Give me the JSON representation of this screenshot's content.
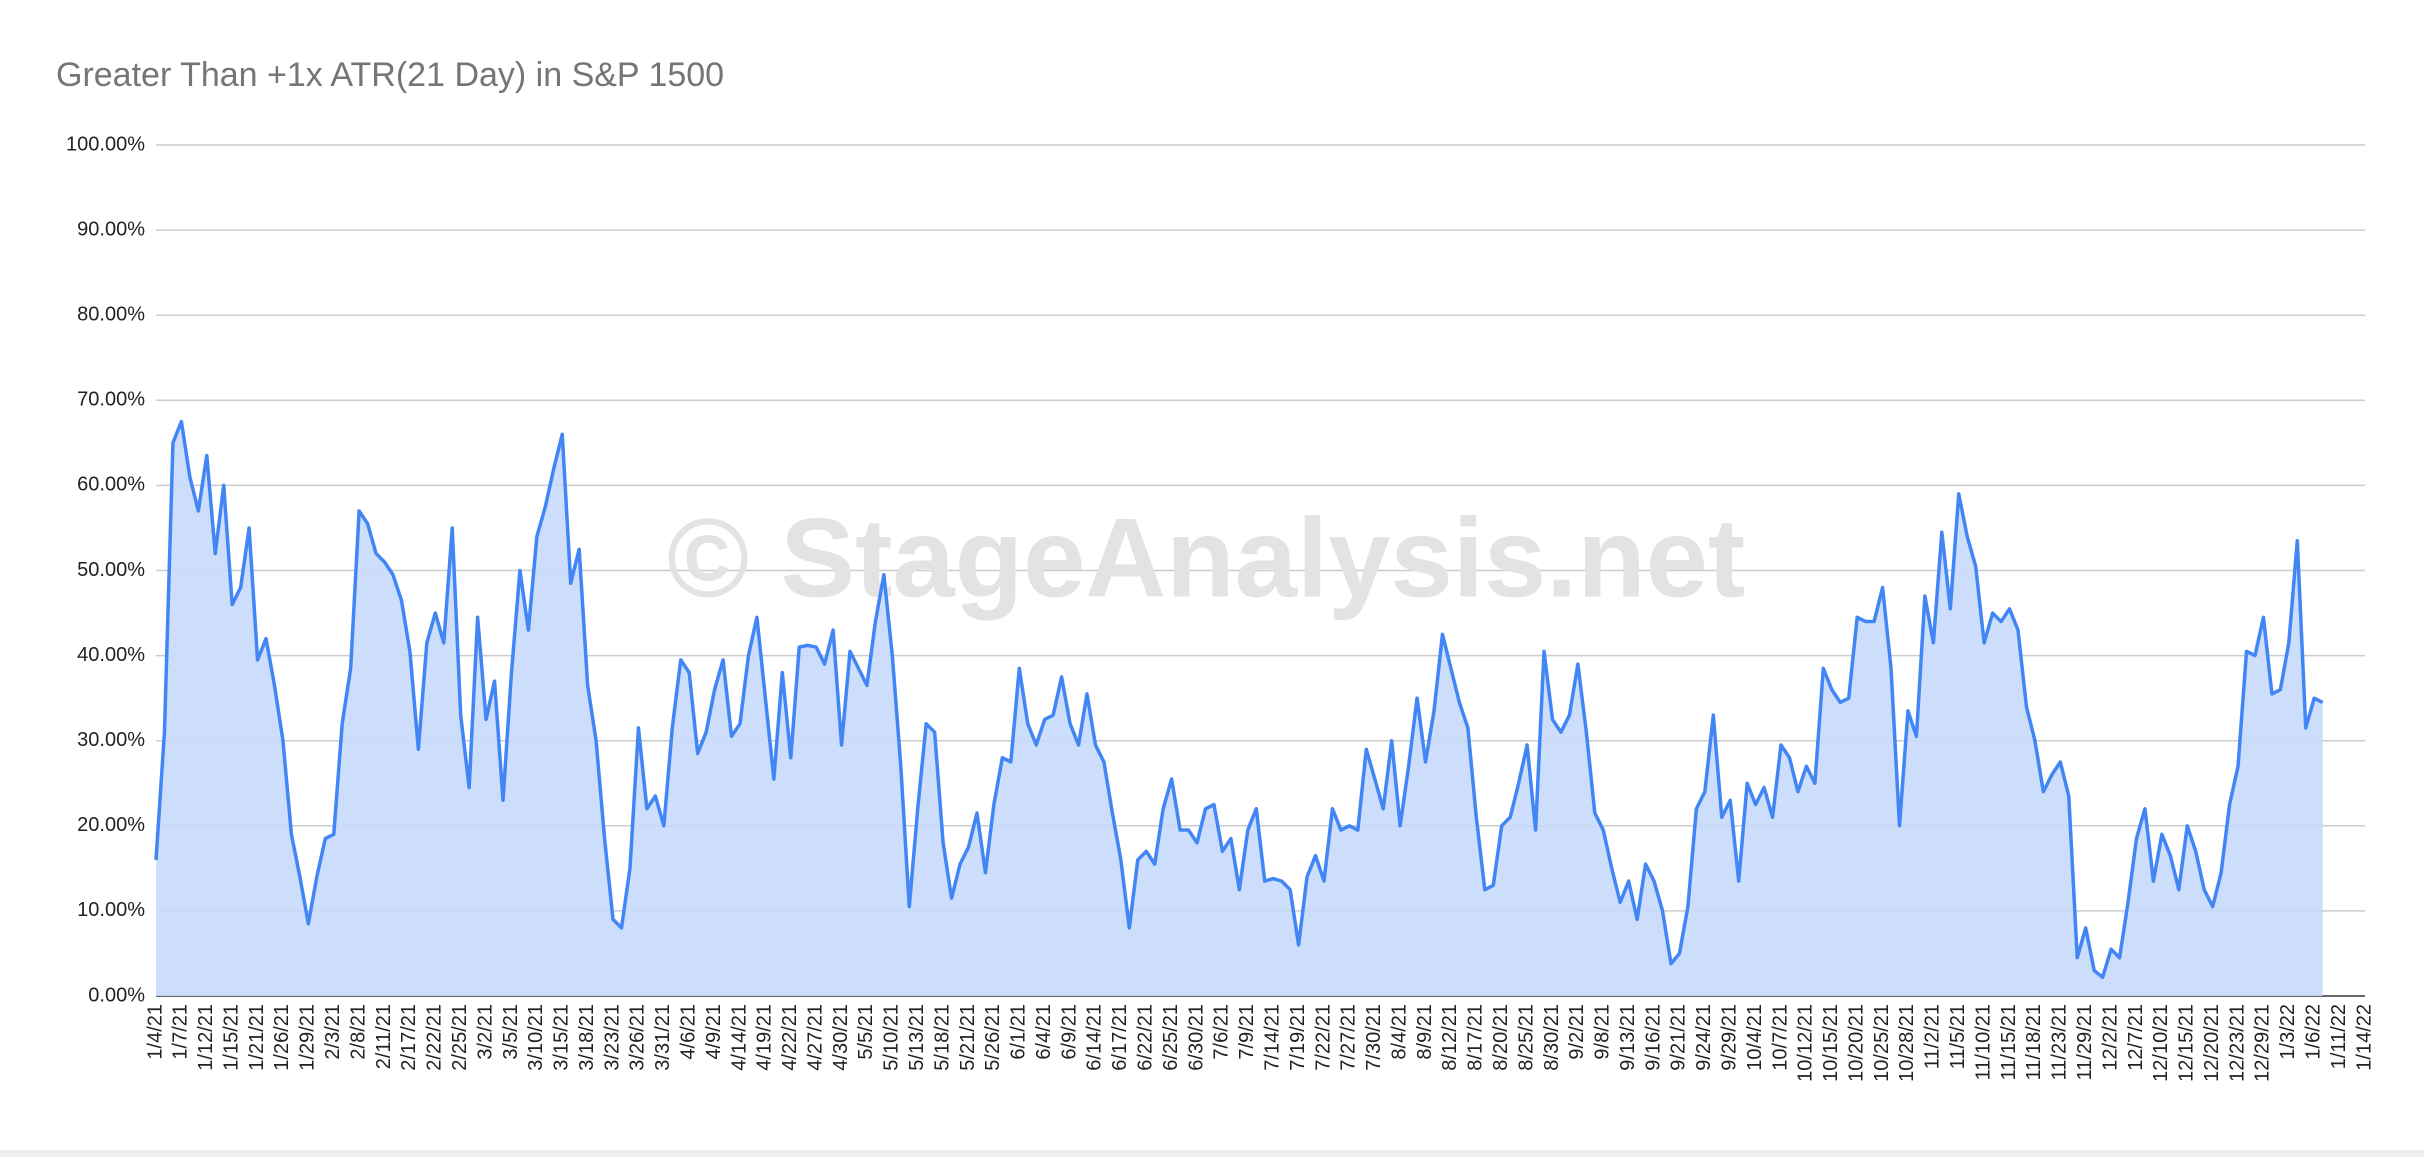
{
  "chart_data": {
    "type": "area",
    "title": "Greater Than +1x ATR(21 Day) in S&P 1500",
    "watermark": "© StageAnalysis.net",
    "color": "#4285f4",
    "fill_color": "#c6dafc",
    "grid": true,
    "ylim": [
      0,
      100
    ],
    "yticks": [
      {
        "value": 0,
        "label": "0.00%"
      },
      {
        "value": 10,
        "label": "10.00%"
      },
      {
        "value": 20,
        "label": "20.00%"
      },
      {
        "value": 30,
        "label": "30.00%"
      },
      {
        "value": 40,
        "label": "40.00%"
      },
      {
        "value": 50,
        "label": "50.00%"
      },
      {
        "value": 60,
        "label": "60.00%"
      },
      {
        "value": 70,
        "label": "70.00%"
      },
      {
        "value": 80,
        "label": "80.00%"
      },
      {
        "value": 90,
        "label": "90.00%"
      },
      {
        "value": 100,
        "label": "100.00%"
      }
    ],
    "categories": [
      "1/4/21",
      null,
      null,
      "1/7/21",
      null,
      null,
      "1/12/21",
      null,
      null,
      "1/15/21",
      null,
      null,
      "1/21/21",
      null,
      null,
      "1/26/21",
      null,
      null,
      "1/29/21",
      null,
      null,
      "2/3/21",
      null,
      null,
      "2/8/21",
      null,
      null,
      "2/11/21",
      null,
      null,
      "2/17/21",
      null,
      null,
      "2/22/21",
      null,
      null,
      "2/25/21",
      null,
      null,
      "3/2/21",
      null,
      null,
      "3/5/21",
      null,
      null,
      "3/10/21",
      null,
      null,
      "3/15/21",
      null,
      null,
      "3/18/21",
      null,
      null,
      "3/23/21",
      null,
      null,
      "3/26/21",
      null,
      null,
      "3/31/21",
      null,
      null,
      "4/6/21",
      null,
      null,
      "4/9/21",
      null,
      null,
      "4/14/21",
      null,
      null,
      "4/19/21",
      null,
      null,
      "4/22/21",
      null,
      null,
      "4/27/21",
      null,
      null,
      "4/30/21",
      null,
      null,
      "5/5/21",
      null,
      null,
      "5/10/21",
      null,
      null,
      "5/13/21",
      null,
      null,
      "5/18/21",
      null,
      null,
      "5/21/21",
      null,
      null,
      "5/26/21",
      null,
      null,
      "6/1/21",
      null,
      null,
      "6/4/21",
      null,
      null,
      "6/9/21",
      null,
      null,
      "6/14/21",
      null,
      null,
      "6/17/21",
      null,
      null,
      "6/22/21",
      null,
      null,
      "6/25/21",
      null,
      null,
      "6/30/21",
      null,
      null,
      "7/6/21",
      null,
      null,
      "7/9/21",
      null,
      null,
      "7/14/21",
      null,
      null,
      "7/19/21",
      null,
      null,
      "7/22/21",
      null,
      null,
      "7/27/21",
      null,
      null,
      "7/30/21",
      null,
      null,
      "8/4/21",
      null,
      null,
      "8/9/21",
      null,
      null,
      "8/12/21",
      null,
      null,
      "8/17/21",
      null,
      null,
      "8/20/21",
      null,
      null,
      "8/25/21",
      null,
      null,
      "8/30/21",
      null,
      null,
      "9/2/21",
      null,
      null,
      "9/8/21",
      null,
      null,
      "9/13/21",
      null,
      null,
      "9/16/21",
      null,
      null,
      "9/21/21",
      null,
      null,
      "9/24/21",
      null,
      null,
      "9/29/21",
      null,
      null,
      "10/4/21",
      null,
      null,
      "10/7/21",
      null,
      null,
      "10/12/21",
      null,
      null,
      "10/15/21",
      null,
      null,
      "10/20/21",
      null,
      null,
      "10/25/21",
      null,
      null,
      "10/28/21",
      null,
      null,
      "11/2/21",
      null,
      null,
      "11/5/21",
      null,
      null,
      "11/10/21",
      null,
      null,
      "11/15/21",
      null,
      null,
      "11/18/21",
      null,
      null,
      "11/23/21",
      null,
      null,
      "11/29/21",
      null,
      null,
      "12/2/21",
      null,
      null,
      "12/7/21",
      null,
      null,
      "12/10/21",
      null,
      null,
      "12/15/21",
      null,
      null,
      "12/20/21",
      null,
      null,
      "12/23/21",
      null,
      null,
      "12/29/21",
      null,
      null,
      "1/3/22",
      null,
      null,
      "1/6/22",
      null,
      null,
      "1/11/22",
      null,
      null,
      "1/14/22"
    ],
    "values": [
      16,
      31,
      65,
      67.5,
      61,
      57,
      63.5,
      52,
      60,
      46,
      48,
      55,
      39.5,
      42,
      36.5,
      30,
      19,
      14,
      8.5,
      14,
      18.5,
      19,
      32,
      38.5,
      57,
      55.5,
      52,
      51,
      49.5,
      46.5,
      40.5,
      29,
      41.5,
      45,
      41.5,
      55,
      33,
      24.5,
      44.5,
      32.5,
      37,
      23,
      38,
      50,
      43,
      54,
      57.5,
      62,
      66,
      48.5,
      52.5,
      36.5,
      30,
      18.5,
      9,
      8,
      15,
      31.5,
      22,
      23.5,
      20,
      31.5,
      39.5,
      38,
      28.5,
      31,
      36,
      39.5,
      30.5,
      32,
      40,
      44.5,
      35,
      25.5,
      38,
      28,
      41,
      41.2,
      41,
      39,
      43,
      29.5,
      40.5,
      38.5,
      36.5,
      44,
      49.5,
      40,
      27,
      10.5,
      22,
      32,
      31,
      18,
      11.5,
      15.5,
      17.5,
      21.5,
      14.5,
      22.5,
      28,
      27.5,
      38.5,
      32,
      29.5,
      32.5,
      33,
      37.5,
      32,
      29.5,
      35.5,
      29.5,
      27.5,
      21.5,
      16,
      8,
      16,
      17,
      15.5,
      22,
      25.5,
      19.5,
      19.5,
      18,
      22,
      22.5,
      17,
      18.5,
      12.5,
      19.5,
      22,
      13.5,
      13.8,
      13.5,
      12.5,
      6,
      14,
      16.5,
      13.5,
      22,
      19.5,
      20,
      19.5,
      29,
      25.5,
      22,
      30,
      20,
      27,
      35,
      27.5,
      33.5,
      42.5,
      38.5,
      34.5,
      31.5,
      21,
      12.5,
      13,
      20,
      21,
      25,
      29.5,
      19.5,
      40.5,
      32.5,
      31,
      33,
      39,
      31,
      21.5,
      19.5,
      15,
      11,
      13.5,
      9,
      15.5,
      13.5,
      10,
      3.8,
      5,
      10.5,
      22,
      24,
      33,
      21,
      23,
      13.5,
      25,
      22.5,
      24.5,
      21,
      29.5,
      28,
      24,
      27,
      25,
      38.5,
      36,
      34.5,
      35,
      44.5,
      44,
      44,
      48,
      38.5,
      20,
      33.5,
      30.5,
      47,
      41.5,
      54.5,
      45.5,
      59,
      54,
      50.5,
      41.5,
      45,
      44,
      45.5,
      43,
      34,
      30,
      24,
      26,
      27.5,
      23.5,
      4.5,
      8,
      3,
      2.2,
      5.5,
      4.5,
      11,
      18.5,
      22,
      13.5,
      19,
      16.5,
      12.5,
      20,
      17,
      12.5,
      10.5,
      14.5,
      22.5,
      27,
      40.5,
      40,
      44.5,
      35.5,
      36,
      41.5,
      53.5,
      31.5,
      35,
      34.5,
      null,
      null,
      null,
      null,
      null
    ]
  }
}
